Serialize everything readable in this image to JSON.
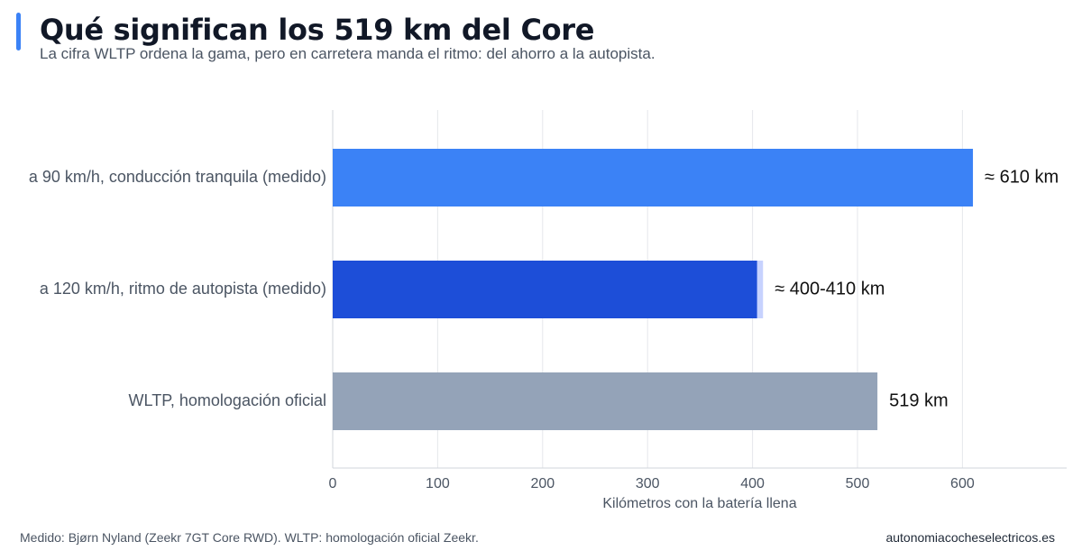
{
  "title": "Qué significan los 519 km del Core",
  "subtitle": "La cifra WLTP ordena la gama, pero en carretera manda el ritmo: del ahorro a la autopista.",
  "footer": {
    "source": "Medido: Bjørn Nyland (Zeekr 7GT Core RWD). WLTP: homologación oficial Zeekr.",
    "site": "autonomiacocheselectricos.es"
  },
  "colors": {
    "accent": "#3b82f6",
    "bar_90": "#3b82f6",
    "bar_120": "#1d4ed8",
    "bar_120_range": "#c7d2fe",
    "bar_wltp": "#94a3b8"
  },
  "chart_data": {
    "type": "bar",
    "orientation": "horizontal",
    "categories": [
      "a 90 km/h, conducción tranquila (medido)",
      "a 120 km/h, ritmo de autopista (medido)",
      "WLTP, homologación oficial"
    ],
    "values": [
      610,
      405,
      519
    ],
    "ranges": [
      null,
      [
        400,
        410
      ],
      null
    ],
    "value_labels": [
      "≈ 610 km",
      "≈ 400-410 km",
      "519 km"
    ],
    "xlabel": "Kilómetros con la batería llena",
    "xlim": [
      0,
      700
    ],
    "xticks": [
      0,
      100,
      200,
      300,
      400,
      500,
      600
    ],
    "grid": true
  }
}
